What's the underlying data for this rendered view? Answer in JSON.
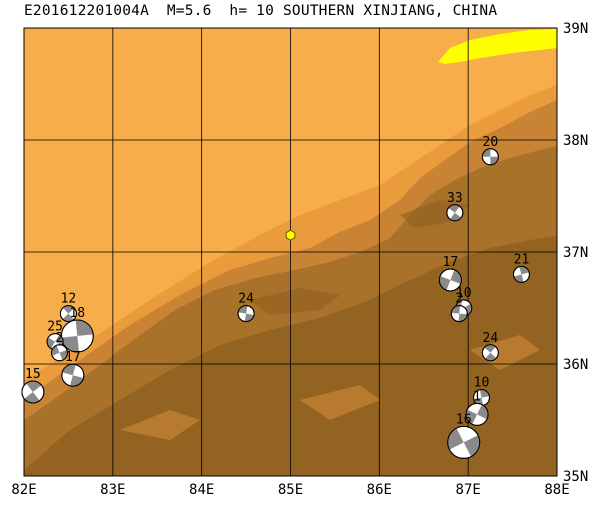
{
  "title": "E201612201004A  M=5.6  h= 10 SOUTHERN XINJIANG, CHINA",
  "axes": {
    "lon_ticks": [
      {
        "value": 82,
        "label": "82E"
      },
      {
        "value": 83,
        "label": "83E"
      },
      {
        "value": 84,
        "label": "84E"
      },
      {
        "value": 85,
        "label": "85E"
      },
      {
        "value": 86,
        "label": "86E"
      },
      {
        "value": 87,
        "label": "87E"
      },
      {
        "value": 88,
        "label": "88E"
      }
    ],
    "lat_ticks": [
      {
        "value": 35,
        "label": "35N"
      },
      {
        "value": 36,
        "label": "36N"
      },
      {
        "value": 37,
        "label": "37N"
      },
      {
        "value": 38,
        "label": "38N"
      },
      {
        "value": 39,
        "label": "39N"
      }
    ],
    "lon_range": [
      82,
      88
    ],
    "lat_range": [
      35,
      39
    ],
    "grid": true
  },
  "colors": {
    "lowland": "#f7ad4a",
    "plain_mid": "#ea9c3c",
    "foothill": "#c88434",
    "mountain": "#a8722a",
    "mountain_dark": "#8f6020",
    "snow_yellow": "#ffff00",
    "mechanism_gray": "#8a8a8a",
    "epicenter": "#ffff00"
  },
  "epicenter": {
    "lon": 85.0,
    "lat": 37.15,
    "icon": "hexagon-marker"
  },
  "mechanisms": [
    {
      "label": "20",
      "lon": 87.25,
      "lat": 37.85,
      "size": "small"
    },
    {
      "label": "33",
      "lon": 86.85,
      "lat": 37.35,
      "size": "small"
    },
    {
      "label": "21",
      "lon": 87.6,
      "lat": 36.8,
      "size": "small"
    },
    {
      "label": "17",
      "lon": 86.8,
      "lat": 36.75,
      "size": "medium"
    },
    {
      "label": "10",
      "lon": 86.95,
      "lat": 36.5,
      "size": "small"
    },
    {
      "label": "2",
      "lon": 86.9,
      "lat": 36.45,
      "size": "small"
    },
    {
      "label": "24",
      "lon": 87.25,
      "lat": 36.1,
      "size": "small"
    },
    {
      "label": "10",
      "lon": 87.15,
      "lat": 35.7,
      "size": "small"
    },
    {
      "label": "1",
      "lon": 87.1,
      "lat": 35.55,
      "size": "medium"
    },
    {
      "label": "16",
      "lon": 86.95,
      "lat": 35.3,
      "size": "large"
    },
    {
      "label": "24",
      "lon": 84.5,
      "lat": 36.45,
      "size": "small"
    },
    {
      "label": "12",
      "lon": 82.5,
      "lat": 36.45,
      "size": "small"
    },
    {
      "label": "18",
      "lon": 82.6,
      "lat": 36.25,
      "size": "large"
    },
    {
      "label": "25",
      "lon": 82.35,
      "lat": 36.2,
      "size": "small"
    },
    {
      "label": "2",
      "lon": 82.4,
      "lat": 36.1,
      "size": "small"
    },
    {
      "label": "17",
      "lon": 82.55,
      "lat": 35.9,
      "size": "medium"
    },
    {
      "label": "15",
      "lon": 82.1,
      "lat": 35.75,
      "size": "medium"
    }
  ]
}
